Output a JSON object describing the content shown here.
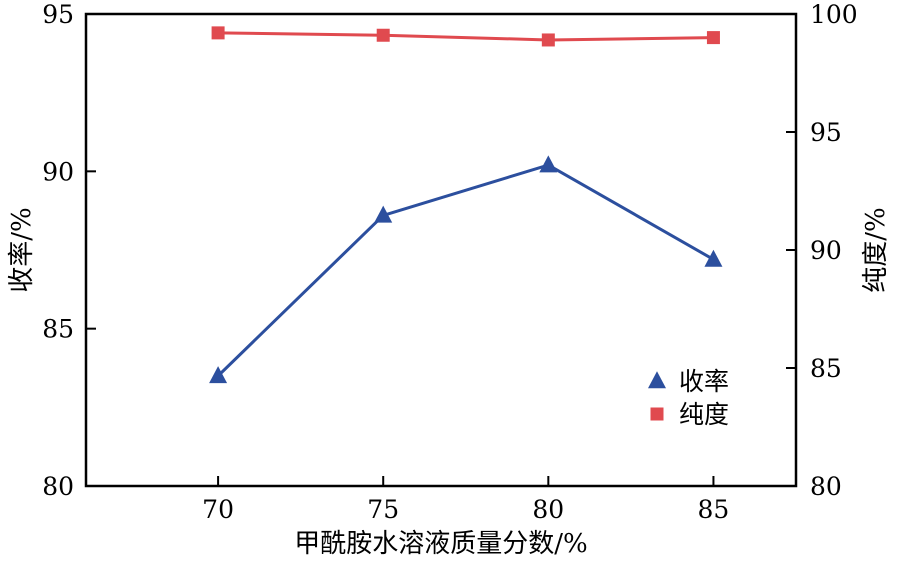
{
  "chart_data": {
    "type": "line",
    "xlabel": "甲酰胺水溶液质量分数/%",
    "ylabel_left": "收率/%",
    "ylabel_right": "纯度/%",
    "x": [
      70,
      75,
      80,
      85
    ],
    "x_ticks": [
      "70",
      "75",
      "80",
      "85"
    ],
    "xlim": [
      66,
      87.5
    ],
    "ylim_left": [
      80,
      95
    ],
    "ylim_right": [
      80,
      100
    ],
    "y_ticks_left": [
      "80",
      "85",
      "90",
      "95"
    ],
    "y_ticks_right": [
      "80",
      "85",
      "90",
      "95",
      "100"
    ],
    "series": [
      {
        "name": "收率",
        "axis": "left",
        "marker": "triangle",
        "color": "#2c4f9e",
        "values": [
          83.5,
          88.6,
          90.2,
          87.2
        ]
      },
      {
        "name": "纯度",
        "axis": "right",
        "marker": "square",
        "color": "#e04a4f",
        "values": [
          99.2,
          99.1,
          98.9,
          99.0
        ]
      }
    ],
    "legend_position": "lower-right",
    "grid": false
  }
}
